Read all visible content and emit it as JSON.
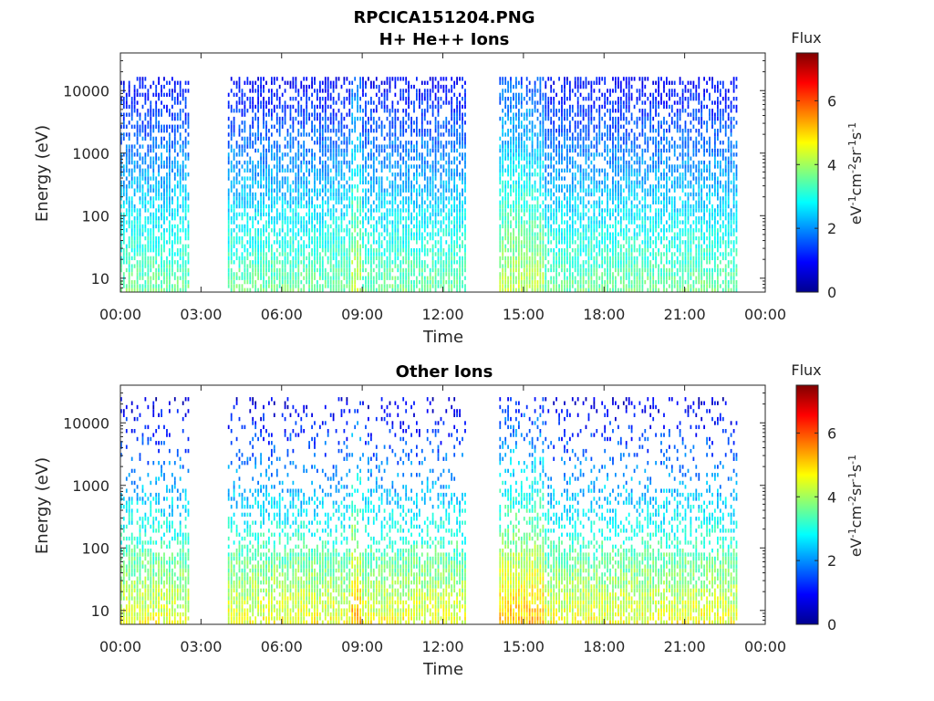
{
  "figure": {
    "title_line1": "RPCICA151204.PNG"
  },
  "chart_data": [
    {
      "type": "heatmap",
      "title": "H+ He++ Ions",
      "xlabel": "Time",
      "ylabel": "Energy (eV)",
      "x_ticks": [
        "00:00",
        "03:00",
        "06:00",
        "09:00",
        "12:00",
        "15:00",
        "18:00",
        "21:00",
        "00:00"
      ],
      "x_range_hours": [
        0,
        24
      ],
      "y_scale": "log",
      "y_ticks": [
        "10",
        "100",
        "1000",
        "10000"
      ],
      "y_tick_values": [
        10,
        100,
        1000,
        10000
      ],
      "y_range": [
        6,
        40000
      ],
      "data_gaps_hours": [
        [
          2.6,
          4.0
        ],
        [
          12.9,
          14.1
        ]
      ],
      "data_end_hours": 23.0,
      "colorbar": {
        "title": "Flux",
        "label": "eV-1cm-2sr-1s-1",
        "ticks": [
          "0",
          "2",
          "4",
          "6"
        ],
        "tick_values": [
          0,
          2,
          4,
          6
        ],
        "range": [
          0,
          7.5
        ],
        "colormap": "jet"
      },
      "colors": {
        "low": "#00008f",
        "mid": "#00ffff",
        "high": "#800000"
      }
    },
    {
      "type": "heatmap",
      "title": "Other Ions",
      "xlabel": "Time",
      "ylabel": "Energy (eV)",
      "x_ticks": [
        "00:00",
        "03:00",
        "06:00",
        "09:00",
        "12:00",
        "15:00",
        "18:00",
        "21:00",
        "00:00"
      ],
      "x_range_hours": [
        0,
        24
      ],
      "y_scale": "log",
      "y_ticks": [
        "10",
        "100",
        "1000",
        "10000"
      ],
      "y_tick_values": [
        10,
        100,
        1000,
        10000
      ],
      "y_range": [
        6,
        40000
      ],
      "data_gaps_hours": [
        [
          2.6,
          4.0
        ],
        [
          12.9,
          14.1
        ]
      ],
      "data_end_hours": 23.0,
      "colorbar": {
        "title": "Flux",
        "label": "eV-1cm-2sr-1s-1",
        "ticks": [
          "0",
          "2",
          "4",
          "6"
        ],
        "tick_values": [
          0,
          2,
          4,
          6
        ],
        "range": [
          0,
          7.5
        ],
        "colormap": "jet"
      },
      "colors": {
        "low": "#00008f",
        "mid": "#00ffff",
        "high": "#800000"
      }
    }
  ]
}
